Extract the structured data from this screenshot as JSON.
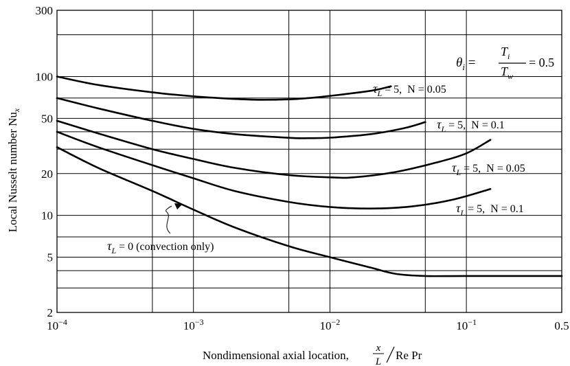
{
  "chart_data": {
    "type": "line",
    "title": "",
    "xlabel_main": "Nondimensional axial location,",
    "xlabel_num": "x",
    "xlabel_den": "L",
    "xlabel_tail": "Re Pr",
    "ylabel": "Local Nusselt number Nu",
    "ylabel_sub": "x",
    "xscale": "log",
    "yscale": "log",
    "xlim": [
      0.0001,
      0.5
    ],
    "ylim": [
      2,
      300
    ],
    "grid": true,
    "x_ticks": [
      {
        "value": 0.0001,
        "base": "10",
        "exp": "−4"
      },
      {
        "value": 0.001,
        "base": "10",
        "exp": "−3"
      },
      {
        "value": 0.01,
        "base": "10",
        "exp": "−2"
      },
      {
        "value": 0.1,
        "base": "10",
        "exp": "−1"
      },
      {
        "value": 0.5,
        "base": "0.5",
        "exp": ""
      }
    ],
    "x_gridlines": [
      0.0005,
      0.001,
      0.005,
      0.01,
      0.05,
      0.1
    ],
    "y_ticks": [
      {
        "value": 2,
        "label": "2"
      },
      {
        "value": 5,
        "label": "5"
      },
      {
        "value": 10,
        "label": "10"
      },
      {
        "value": 20,
        "label": "20"
      },
      {
        "value": 50,
        "label": "50"
      },
      {
        "value": 100,
        "label": "100"
      },
      {
        "value": 300,
        "label": "300"
      }
    ],
    "y_gridlines": [
      3,
      4,
      5,
      7,
      10,
      20,
      30,
      40,
      50,
      70,
      100,
      200
    ],
    "parameter_note": {
      "theta": "θ",
      "theta_sub": "i",
      "eq": "=",
      "num": "T",
      "num_sub": "i",
      "den": "T",
      "den_sub": "w",
      "value": "= 0.5"
    },
    "series": [
      {
        "tau": "τ",
        "tau_sub": "L",
        "text": "= 5,  N = 0.05",
        "values": [
          [
            0.0001,
            100
          ],
          [
            0.0002,
            87
          ],
          [
            0.0005,
            77
          ],
          [
            0.001,
            72
          ],
          [
            0.002,
            69
          ],
          [
            0.003,
            68
          ],
          [
            0.005,
            68.5
          ],
          [
            0.007,
            70
          ],
          [
            0.01,
            72.5
          ],
          [
            0.02,
            79
          ],
          [
            0.028,
            85
          ]
        ]
      },
      {
        "tau": "τ",
        "tau_sub": "L",
        "text": "= 5,  N = 0.1",
        "values": [
          [
            0.0001,
            70
          ],
          [
            0.0002,
            59
          ],
          [
            0.0005,
            48
          ],
          [
            0.001,
            42
          ],
          [
            0.002,
            38.5
          ],
          [
            0.005,
            36.2
          ],
          [
            0.007,
            36
          ],
          [
            0.01,
            36.3
          ],
          [
            0.02,
            38.5
          ],
          [
            0.035,
            42.5
          ],
          [
            0.05,
            47
          ]
        ]
      },
      {
        "tau": "τ",
        "tau_sub": "L",
        "text": "= 5,  N = 0.05",
        "values": [
          [
            0.0001,
            48
          ],
          [
            0.0002,
            39
          ],
          [
            0.0005,
            30
          ],
          [
            0.001,
            25.5
          ],
          [
            0.002,
            22
          ],
          [
            0.005,
            19.5
          ],
          [
            0.01,
            18.8
          ],
          [
            0.015,
            18.8
          ],
          [
            0.03,
            20.5
          ],
          [
            0.06,
            24
          ],
          [
            0.1,
            28
          ],
          [
            0.15,
            35
          ]
        ]
      },
      {
        "tau": "τ",
        "tau_sub": "L",
        "text": "= 5,  N = 0.1",
        "values": [
          [
            0.0001,
            40
          ],
          [
            0.0002,
            31
          ],
          [
            0.0005,
            23
          ],
          [
            0.001,
            18.5
          ],
          [
            0.002,
            15
          ],
          [
            0.005,
            12.5
          ],
          [
            0.01,
            11.5
          ],
          [
            0.02,
            11.2
          ],
          [
            0.04,
            11.6
          ],
          [
            0.08,
            13
          ],
          [
            0.15,
            15.5
          ]
        ]
      },
      {
        "tau": "τ",
        "tau_sub": "L",
        "text": "= 0 (convection only)",
        "values": [
          [
            0.0001,
            31
          ],
          [
            0.0002,
            22
          ],
          [
            0.0005,
            15
          ],
          [
            0.001,
            11
          ],
          [
            0.002,
            8.2
          ],
          [
            0.005,
            6
          ],
          [
            0.01,
            5
          ],
          [
            0.02,
            4.2
          ],
          [
            0.03,
            3.8
          ],
          [
            0.05,
            3.66
          ],
          [
            0.1,
            3.66
          ],
          [
            0.5,
            3.66
          ]
        ]
      }
    ]
  }
}
